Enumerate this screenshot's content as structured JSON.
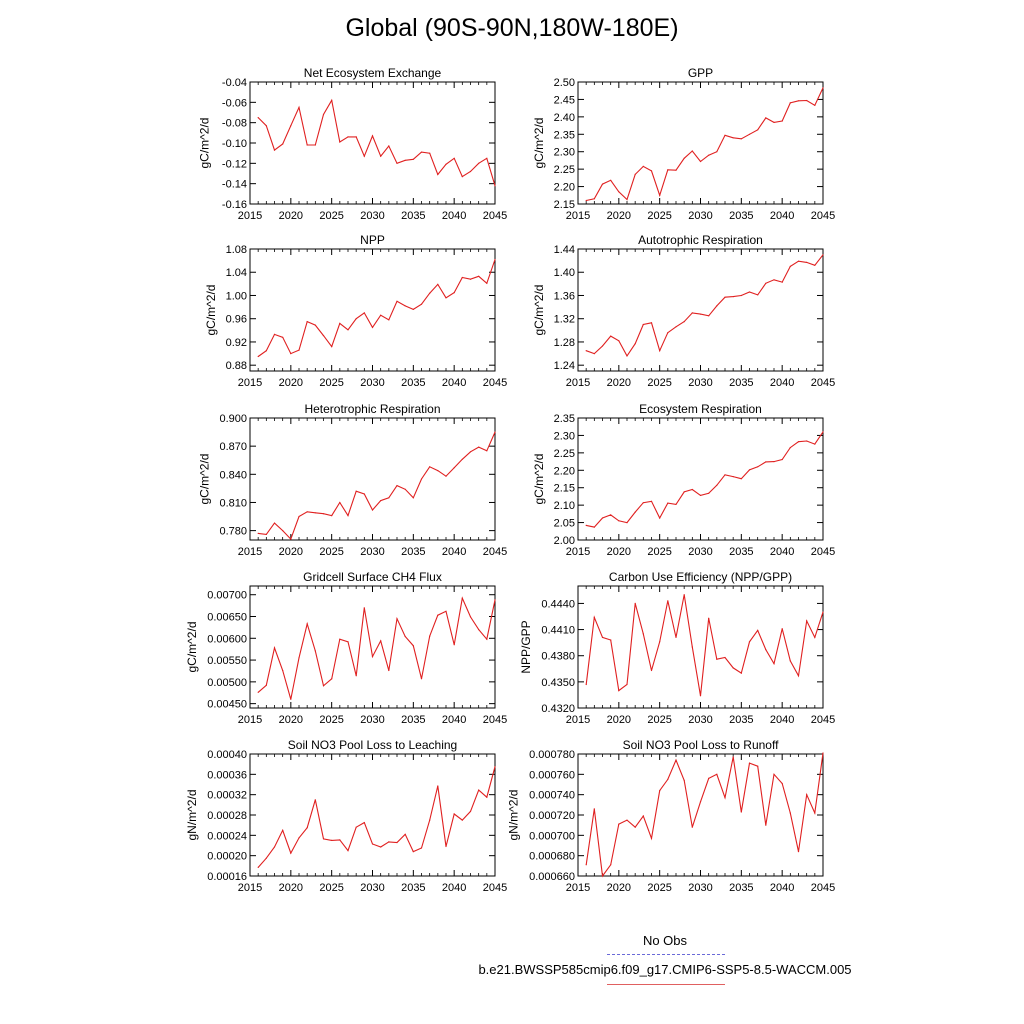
{
  "title": "Global (90S-90N,180W-180E)",
  "legend": {
    "obs_label": "No Obs",
    "case_label": "b.e21.BWSSP585cmip6.f09_g17.CMIP6-SSP5-8.5-WACCM.005",
    "obs_color": "#6a6ad8",
    "case_color": "#e02020"
  },
  "chart_data": [
    {
      "type": "line",
      "title": "Net Ecosystem Exchange",
      "xlabel": "",
      "ylabel": "gC/m^2/d",
      "xlim": [
        2015,
        2045
      ],
      "ylim": [
        -0.16,
        -0.04
      ],
      "xticks": [
        2015,
        2020,
        2025,
        2030,
        2035,
        2040,
        2045
      ],
      "yticks": [
        "-0.04",
        "-0.06",
        "-0.08",
        "-0.10",
        "-0.12",
        "-0.14",
        "-0.16"
      ],
      "color": "#e02020",
      "x": [
        2016,
        2017,
        2018,
        2019,
        2020,
        2021,
        2022,
        2023,
        2024,
        2025,
        2026,
        2027,
        2028,
        2029,
        2030,
        2031,
        2032,
        2033,
        2034,
        2035,
        2036,
        2037,
        2038,
        2039,
        2040,
        2041,
        2042,
        2043,
        2044,
        2045
      ],
      "values": [
        -0.075,
        -0.083,
        -0.107,
        -0.101,
        -0.083,
        -0.065,
        -0.102,
        -0.102,
        -0.072,
        -0.058,
        -0.099,
        -0.094,
        -0.094,
        -0.113,
        -0.093,
        -0.113,
        -0.103,
        -0.12,
        -0.117,
        -0.116,
        -0.109,
        -0.11,
        -0.131,
        -0.121,
        -0.115,
        -0.133,
        -0.128,
        -0.12,
        -0.115,
        -0.142
      ]
    },
    {
      "type": "line",
      "title": "GPP",
      "xlabel": "",
      "ylabel": "gC/m^2/d",
      "xlim": [
        2015,
        2045
      ],
      "ylim": [
        2.15,
        2.5
      ],
      "xticks": [
        2015,
        2020,
        2025,
        2030,
        2035,
        2040,
        2045
      ],
      "yticks": [
        "2.50",
        "2.45",
        "2.40",
        "2.35",
        "2.30",
        "2.25",
        "2.20",
        "2.15"
      ],
      "color": "#e02020",
      "x": [
        2016,
        2017,
        2018,
        2019,
        2020,
        2021,
        2022,
        2023,
        2024,
        2025,
        2026,
        2027,
        2028,
        2029,
        2030,
        2031,
        2032,
        2033,
        2034,
        2035,
        2036,
        2037,
        2038,
        2039,
        2040,
        2041,
        2042,
        2043,
        2044,
        2045
      ],
      "values": [
        2.16,
        2.165,
        2.207,
        2.218,
        2.185,
        2.163,
        2.235,
        2.258,
        2.245,
        2.175,
        2.248,
        2.247,
        2.281,
        2.302,
        2.272,
        2.29,
        2.3,
        2.347,
        2.34,
        2.337,
        2.35,
        2.363,
        2.397,
        2.384,
        2.388,
        2.44,
        2.446,
        2.447,
        2.433,
        2.483
      ]
    },
    {
      "type": "line",
      "title": "NPP",
      "xlabel": "",
      "ylabel": "gC/m^2/d",
      "xlim": [
        2015,
        2045
      ],
      "ylim": [
        0.87,
        1.08
      ],
      "xticks": [
        2015,
        2020,
        2025,
        2030,
        2035,
        2040,
        2045
      ],
      "yticks": [
        "1.08",
        "1.04",
        "1.00",
        "0.96",
        "0.92",
        "0.88"
      ],
      "color": "#e02020",
      "x": [
        2016,
        2017,
        2018,
        2019,
        2020,
        2021,
        2022,
        2023,
        2024,
        2025,
        2026,
        2027,
        2028,
        2029,
        2030,
        2031,
        2032,
        2033,
        2034,
        2035,
        2036,
        2037,
        2038,
        2039,
        2040,
        2041,
        2042,
        2043,
        2044,
        2045
      ],
      "values": [
        0.895,
        0.905,
        0.933,
        0.928,
        0.9,
        0.906,
        0.955,
        0.949,
        0.931,
        0.912,
        0.952,
        0.941,
        0.96,
        0.97,
        0.945,
        0.966,
        0.958,
        0.99,
        0.982,
        0.976,
        0.985,
        1.004,
        1.019,
        0.996,
        1.005,
        1.031,
        1.028,
        1.033,
        1.021,
        1.062
      ]
    },
    {
      "type": "line",
      "title": "Autotrophic Respiration",
      "xlabel": "",
      "ylabel": "gC/m^2/d",
      "xlim": [
        2015,
        2045
      ],
      "ylim": [
        1.23,
        1.44
      ],
      "xticks": [
        2015,
        2020,
        2025,
        2030,
        2035,
        2040,
        2045
      ],
      "yticks": [
        "1.44",
        "1.40",
        "1.36",
        "1.32",
        "1.28",
        "1.24"
      ],
      "color": "#e02020",
      "x": [
        2016,
        2017,
        2018,
        2019,
        2020,
        2021,
        2022,
        2023,
        2024,
        2025,
        2026,
        2027,
        2028,
        2029,
        2030,
        2031,
        2032,
        2033,
        2034,
        2035,
        2036,
        2037,
        2038,
        2039,
        2040,
        2041,
        2042,
        2043,
        2044,
        2045
      ],
      "values": [
        1.265,
        1.26,
        1.273,
        1.29,
        1.282,
        1.256,
        1.277,
        1.31,
        1.313,
        1.265,
        1.296,
        1.306,
        1.315,
        1.33,
        1.328,
        1.325,
        1.342,
        1.357,
        1.358,
        1.36,
        1.366,
        1.361,
        1.381,
        1.387,
        1.383,
        1.41,
        1.419,
        1.417,
        1.412,
        1.43
      ]
    },
    {
      "type": "line",
      "title": "Heterotrophic Respiration",
      "xlabel": "",
      "ylabel": "gC/m^2/d",
      "xlim": [
        2015,
        2045
      ],
      "ylim": [
        0.77,
        0.9
      ],
      "xticks": [
        2015,
        2020,
        2025,
        2030,
        2035,
        2040,
        2045
      ],
      "yticks": [
        "0.900",
        "0.870",
        "0.840",
        "0.810",
        "0.780"
      ],
      "color": "#e02020",
      "x": [
        2016,
        2017,
        2018,
        2019,
        2020,
        2021,
        2022,
        2023,
        2024,
        2025,
        2026,
        2027,
        2028,
        2029,
        2030,
        2031,
        2032,
        2033,
        2034,
        2035,
        2036,
        2037,
        2038,
        2039,
        2040,
        2041,
        2042,
        2043,
        2044,
        2045
      ],
      "values": [
        0.777,
        0.776,
        0.788,
        0.78,
        0.771,
        0.795,
        0.8,
        0.799,
        0.798,
        0.796,
        0.81,
        0.796,
        0.822,
        0.819,
        0.802,
        0.812,
        0.815,
        0.828,
        0.824,
        0.815,
        0.835,
        0.848,
        0.844,
        0.838,
        0.847,
        0.856,
        0.864,
        0.869,
        0.865,
        0.885
      ]
    },
    {
      "type": "line",
      "title": "Ecosystem Respiration",
      "xlabel": "",
      "ylabel": "gC/m^2/d",
      "xlim": [
        2015,
        2045
      ],
      "ylim": [
        2.0,
        2.35
      ],
      "xticks": [
        2015,
        2020,
        2025,
        2030,
        2035,
        2040,
        2045
      ],
      "yticks": [
        "2.35",
        "2.30",
        "2.25",
        "2.20",
        "2.15",
        "2.10",
        "2.05",
        "2.00"
      ],
      "color": "#e02020",
      "x": [
        2016,
        2017,
        2018,
        2019,
        2020,
        2021,
        2022,
        2023,
        2024,
        2025,
        2026,
        2027,
        2028,
        2029,
        2030,
        2031,
        2032,
        2033,
        2034,
        2035,
        2036,
        2037,
        2038,
        2039,
        2040,
        2041,
        2042,
        2043,
        2044,
        2045
      ],
      "values": [
        2.042,
        2.037,
        2.063,
        2.072,
        2.055,
        2.05,
        2.08,
        2.107,
        2.111,
        2.063,
        2.106,
        2.102,
        2.138,
        2.145,
        2.128,
        2.134,
        2.157,
        2.187,
        2.182,
        2.176,
        2.201,
        2.21,
        2.224,
        2.225,
        2.231,
        2.265,
        2.282,
        2.284,
        2.275,
        2.31
      ]
    },
    {
      "type": "line",
      "title": "Gridcell Surface CH4 Flux",
      "xlabel": "",
      "ylabel": "gC/m^2/d",
      "xlim": [
        2015,
        2045
      ],
      "ylim": [
        0.0044,
        0.0072
      ],
      "xticks": [
        2015,
        2020,
        2025,
        2030,
        2035,
        2040,
        2045
      ],
      "yticks": [
        "0.00700",
        "0.00650",
        "0.00600",
        "0.00550",
        "0.00500",
        "0.00450"
      ],
      "color": "#e02020",
      "x": [
        2016,
        2017,
        2018,
        2019,
        2020,
        2021,
        2022,
        2023,
        2024,
        2025,
        2026,
        2027,
        2028,
        2029,
        2030,
        2031,
        2032,
        2033,
        2034,
        2035,
        2036,
        2037,
        2038,
        2039,
        2040,
        2041,
        2042,
        2043,
        2044,
        2045
      ],
      "values": [
        0.00476,
        0.00492,
        0.00578,
        0.00526,
        0.0046,
        0.00555,
        0.00633,
        0.00571,
        0.00491,
        0.00507,
        0.00598,
        0.00592,
        0.00514,
        0.0067,
        0.00558,
        0.00594,
        0.00526,
        0.00645,
        0.00604,
        0.00583,
        0.00507,
        0.00605,
        0.00653,
        0.00662,
        0.00585,
        0.00692,
        0.00649,
        0.0062,
        0.00598,
        0.00688
      ]
    },
    {
      "type": "line",
      "title": "Carbon Use Efficiency (NPP/GPP)",
      "xlabel": "",
      "ylabel": "NPP/GPP",
      "xlim": [
        2015,
        2045
      ],
      "ylim": [
        0.432,
        0.446
      ],
      "xticks": [
        2015,
        2020,
        2025,
        2030,
        2035,
        2040,
        2045
      ],
      "yticks": [
        "0.4440",
        "0.4410",
        "0.4380",
        "0.4350",
        "0.4320"
      ],
      "color": "#e02020",
      "x": [
        2016,
        2017,
        2018,
        2019,
        2020,
        2021,
        2022,
        2023,
        2024,
        2025,
        2026,
        2027,
        2028,
        2029,
        2030,
        2031,
        2032,
        2033,
        2034,
        2035,
        2036,
        2037,
        2038,
        2039,
        2040,
        2041,
        2042,
        2043,
        2044,
        2045
      ],
      "values": [
        0.4347,
        0.4424,
        0.4401,
        0.4398,
        0.434,
        0.4347,
        0.444,
        0.4405,
        0.4363,
        0.4396,
        0.4443,
        0.4401,
        0.445,
        0.439,
        0.4334,
        0.4423,
        0.4376,
        0.4378,
        0.4366,
        0.436,
        0.4396,
        0.4409,
        0.4387,
        0.4371,
        0.4411,
        0.4374,
        0.4357,
        0.442,
        0.4401,
        0.443
      ]
    },
    {
      "type": "line",
      "title": "Soil NO3 Pool Loss to Leaching",
      "xlabel": "",
      "ylabel": "gN/m^2/d",
      "xlim": [
        2015,
        2045
      ],
      "ylim": [
        0.00016,
        0.0004
      ],
      "xticks": [
        2015,
        2020,
        2025,
        2030,
        2035,
        2040,
        2045
      ],
      "yticks": [
        "0.00040",
        "0.00036",
        "0.00032",
        "0.00028",
        "0.00024",
        "0.00020",
        "0.00016"
      ],
      "color": "#e02020",
      "x": [
        2016,
        2017,
        2018,
        2019,
        2020,
        2021,
        2022,
        2023,
        2024,
        2025,
        2026,
        2027,
        2028,
        2029,
        2030,
        2031,
        2032,
        2033,
        2034,
        2035,
        2036,
        2037,
        2038,
        2039,
        2040,
        2041,
        2042,
        2043,
        2044,
        2045
      ],
      "values": [
        0.000177,
        0.000195,
        0.000217,
        0.00025,
        0.000205,
        0.000235,
        0.000255,
        0.00031,
        0.000233,
        0.00023,
        0.000231,
        0.00021,
        0.000256,
        0.000265,
        0.000223,
        0.000217,
        0.000227,
        0.000226,
        0.000242,
        0.000208,
        0.000215,
        0.00027,
        0.000337,
        0.000218,
        0.000282,
        0.00027,
        0.000287,
        0.000329,
        0.000315,
        0.000375
      ]
    },
    {
      "type": "line",
      "title": "Soil NO3 Pool Loss to Runoff",
      "xlabel": "",
      "ylabel": "gN/m^2/d",
      "xlim": [
        2015,
        2045
      ],
      "ylim": [
        0.00066,
        0.00078
      ],
      "xticks": [
        2015,
        2020,
        2025,
        2030,
        2035,
        2040,
        2045
      ],
      "yticks": [
        "0.000780",
        "0.000760",
        "0.000740",
        "0.000720",
        "0.000700",
        "0.000680",
        "0.000660"
      ],
      "color": "#e02020",
      "x": [
        2016,
        2017,
        2018,
        2019,
        2020,
        2021,
        2022,
        2023,
        2024,
        2025,
        2026,
        2027,
        2028,
        2029,
        2030,
        2031,
        2032,
        2033,
        2034,
        2035,
        2036,
        2037,
        2038,
        2039,
        2040,
        2041,
        2042,
        2043,
        2044,
        2045
      ],
      "values": [
        0.000671,
        0.000726,
        0.00066,
        0.000671,
        0.000711,
        0.000715,
        0.000708,
        0.000719,
        0.000697,
        0.000744,
        0.000755,
        0.000774,
        0.000754,
        0.000708,
        0.000733,
        0.000756,
        0.00076,
        0.000737,
        0.000777,
        0.000723,
        0.000771,
        0.000768,
        0.00071,
        0.00076,
        0.000751,
        0.000722,
        0.000684,
        0.00074,
        0.000722,
        0.000781
      ]
    }
  ]
}
